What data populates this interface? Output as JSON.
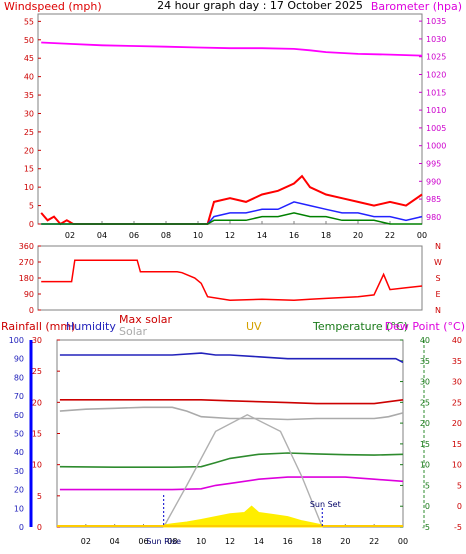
{
  "title": "24 hour graph day : 17 October 2025",
  "colors": {
    "wind": "#ff0000",
    "gust": "#ff0000",
    "wind_avg": "#2222ff",
    "wind_low": "#008000",
    "baro": "#ff00ff",
    "dir": "#ff0000",
    "rain": "#0000ff",
    "humidity": "#2222bb",
    "maxsolar": "#cc0000",
    "solar": "#aaaaaa",
    "uv": "#d4a000",
    "temp": "#2e8b2e",
    "dew": "#dd00dd",
    "sun": "#ffee00",
    "axis": "#808080"
  },
  "x_ticks": [
    "02",
    "04",
    "06",
    "08",
    "10",
    "12",
    "14",
    "16",
    "18",
    "20",
    "22",
    "00"
  ],
  "chart_data": [
    {
      "type": "line",
      "left_label": "Windspeed (mph)",
      "right_label": "Barometer (hpa)",
      "left_ticks": [
        "55",
        "50",
        "45",
        "40",
        "35",
        "30",
        "25",
        "20",
        "15",
        "10",
        "5",
        "0"
      ],
      "right_ticks": [
        "1035",
        "1030",
        "1025",
        "1020",
        "1015",
        "1010",
        "1005",
        "1000",
        "995",
        "990",
        "985",
        "980"
      ],
      "ylim_left": [
        0,
        57
      ],
      "ylim_right": [
        978,
        1037
      ],
      "series": [
        {
          "key": "baro",
          "x": [
            0.2,
            2,
            4,
            6,
            8,
            10,
            12,
            14,
            16,
            17,
            18,
            20,
            22,
            24
          ],
          "values": [
            1029,
            1028.6,
            1028.2,
            1028,
            1027.8,
            1027.6,
            1027.4,
            1027.4,
            1027.2,
            1026.8,
            1026.3,
            1025.8,
            1025.6,
            1025.3
          ]
        },
        {
          "key": "gust",
          "x": [
            0.2,
            0.6,
            1,
            1.4,
            1.8,
            2.2,
            10.6,
            11,
            12,
            13,
            14,
            15,
            16,
            16.5,
            17,
            18,
            19,
            20,
            21,
            22,
            23,
            24
          ],
          "values": [
            3,
            1,
            2,
            0,
            1,
            0,
            0,
            6,
            7,
            6,
            8,
            9,
            11,
            13,
            10,
            8,
            7,
            6,
            5,
            6,
            5,
            8
          ]
        },
        {
          "key": "wind_avg",
          "x": [
            0.2,
            10.6,
            11,
            12,
            13,
            14,
            15,
            16,
            17,
            18,
            19,
            20,
            21,
            22,
            23,
            24
          ],
          "values": [
            0,
            0,
            2,
            3,
            3,
            4,
            4,
            6,
            5,
            4,
            3,
            3,
            2,
            2,
            1,
            2
          ]
        },
        {
          "key": "wind_low",
          "x": [
            0.2,
            10.6,
            11,
            12,
            13,
            14,
            15,
            16,
            17,
            18,
            19,
            20,
            21,
            22,
            23,
            24
          ],
          "values": [
            0,
            0,
            1,
            1,
            1,
            2,
            2,
            3,
            2,
            2,
            1,
            1,
            1,
            0,
            0,
            0
          ]
        }
      ]
    },
    {
      "type": "line",
      "left_ticks": [
        "360",
        "270",
        "180",
        "90",
        "0"
      ],
      "right_ticks": [
        "N",
        "W",
        "S",
        "E",
        "N"
      ],
      "ylim": [
        0,
        360
      ],
      "series": [
        {
          "key": "dir",
          "x": [
            0.2,
            2.1,
            2.3,
            6.2,
            6.4,
            8.7,
            9,
            9.8,
            10.2,
            10.6,
            12,
            14,
            16,
            17,
            18,
            20,
            21,
            21.6,
            22,
            23,
            24
          ],
          "values": [
            160,
            160,
            280,
            280,
            215,
            215,
            210,
            180,
            150,
            75,
            55,
            60,
            55,
            60,
            65,
            75,
            85,
            200,
            115,
            125,
            135
          ]
        }
      ]
    },
    {
      "type": "line",
      "labels": {
        "rain": "Rainfall (mm)",
        "humidity": "Humidity",
        "maxsolar": "Max solar",
        "solar": "Solar",
        "uv": "UV",
        "temp": "Temperature (°C)",
        "dew": "Dew Point (°C)"
      },
      "humidity_ticks": [
        "100",
        "90",
        "80",
        "70",
        "60",
        "50",
        "40",
        "30",
        "20",
        "10",
        "0"
      ],
      "rain_ticks": [
        "30",
        "25",
        "20",
        "15",
        "10",
        "5",
        "0"
      ],
      "temp_ticks": [
        "40",
        "35",
        "30",
        "25",
        "20",
        "15",
        "10",
        "5",
        "0",
        "-5"
      ],
      "dew_ticks": [
        "40",
        "35",
        "30",
        "25",
        "20",
        "15",
        "10",
        "5",
        "0",
        "-5"
      ],
      "annotations": {
        "sunrise": "Sun Rise",
        "sunset": "Sun Set"
      },
      "sunrise_h": 7.4,
      "sunset_h": 18.4,
      "series": [
        {
          "key": "humidity",
          "x": [
            0.2,
            4,
            8,
            10,
            11,
            12,
            14,
            16,
            18,
            20,
            22,
            23.5,
            24
          ],
          "values": [
            92,
            92,
            92,
            93,
            92,
            92,
            91,
            90,
            90,
            90,
            90,
            90,
            88
          ]
        },
        {
          "key": "maxsolar",
          "x": [
            0.2,
            6,
            10,
            12,
            14,
            16,
            18,
            20,
            22,
            23,
            24
          ],
          "values": [
            68,
            68,
            68,
            67.5,
            67,
            66.5,
            66,
            66,
            66,
            67,
            68
          ]
        },
        {
          "key": "solar",
          "x": [
            0.2,
            2,
            4,
            6,
            8,
            9,
            10,
            12,
            14,
            16,
            18,
            20,
            22,
            23,
            24
          ],
          "values": [
            62,
            63,
            63.5,
            64,
            64,
            62,
            59,
            58,
            58,
            57.5,
            58,
            58,
            58,
            59,
            61
          ]
        },
        {
          "key": "temp",
          "x": [
            0.2,
            4,
            8,
            10,
            11,
            12,
            14,
            16,
            18,
            20,
            22,
            24
          ],
          "values": [
            9.5,
            9.4,
            9.4,
            9.5,
            10.5,
            11.5,
            12.5,
            12.8,
            12.6,
            12.4,
            12.3,
            12.5
          ]
        },
        {
          "key": "dew",
          "x": [
            0.2,
            4,
            8,
            10,
            11,
            12,
            14,
            16,
            18,
            20,
            22,
            24
          ],
          "values": [
            4,
            4,
            4,
            4.2,
            5,
            5.5,
            6.5,
            7,
            7,
            7,
            6.5,
            6
          ]
        },
        {
          "key": "sun_curve",
          "x": [
            7.4,
            9,
            11,
            13.2,
            15.5,
            17,
            18.4
          ],
          "values": [
            0,
            10,
            23,
            27,
            23,
            12,
            0
          ]
        },
        {
          "key": "sun_fill",
          "x": [
            7.4,
            8,
            9,
            10,
            11,
            12,
            13,
            13.5,
            14,
            15,
            16,
            17,
            18.4
          ],
          "values": [
            0.5,
            0.8,
            1.2,
            1.8,
            2.5,
            3.2,
            3.5,
            5,
            3.5,
            3,
            2.5,
            1.5,
            0.5
          ]
        }
      ]
    }
  ]
}
